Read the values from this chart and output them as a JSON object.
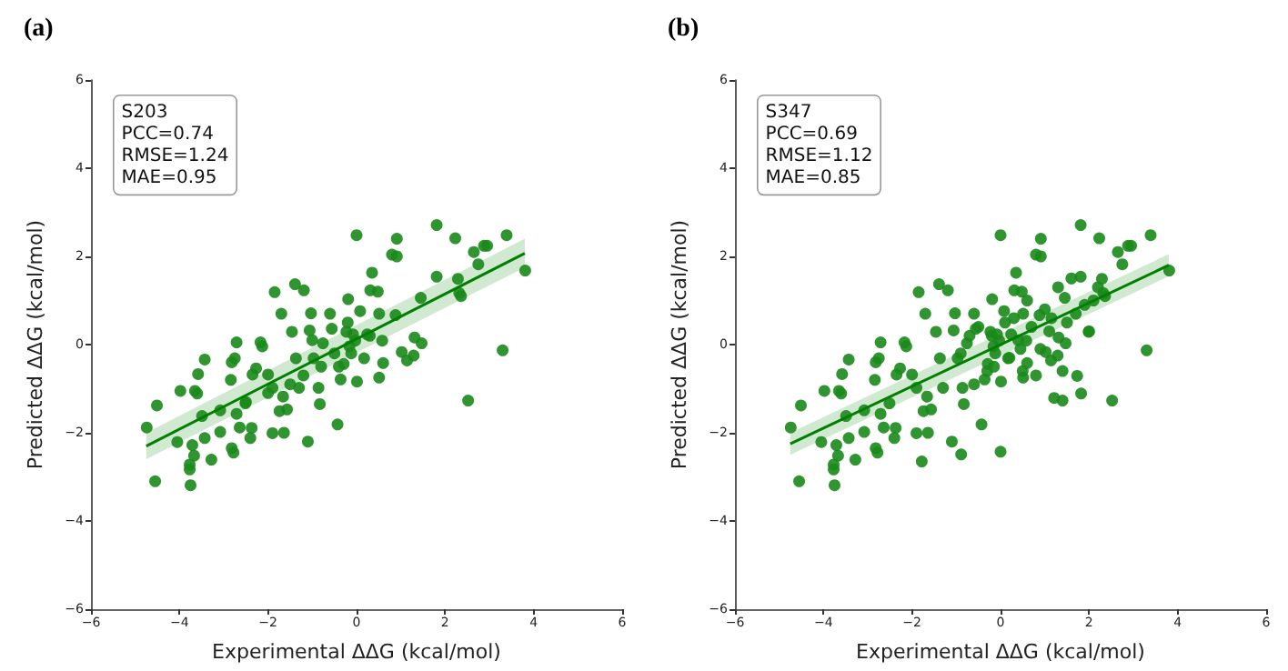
{
  "chart_data": [
    {
      "type": "scatter",
      "title": "(a)",
      "xlabel": "Experimental ΔΔG (kcal/mol)",
      "ylabel": "Predicted ΔΔG (kcal/mol)",
      "xlim": [
        -6,
        6
      ],
      "ylim": [
        -6,
        6
      ],
      "xticks": [
        -6,
        -4,
        -2,
        0,
        2,
        4,
        6
      ],
      "yticks": [
        -6,
        -4,
        -2,
        0,
        2,
        4,
        6
      ],
      "grid": false,
      "annotations": [
        "S203",
        "PCC=0.74",
        "RMSE=1.24",
        "MAE=0.95"
      ],
      "series": [
        {
          "marker": "circle",
          "color": "#1a8a1a",
          "x": [
            -4.74,
            -4.55,
            -4.51,
            -3.98,
            -4.05,
            -3.77,
            -3.75,
            -3.77,
            -3.71,
            -3.67,
            -3.65,
            -3.6,
            -3.58,
            -3.43,
            -3.49,
            -3.43,
            -3.28,
            -3.08,
            -3.08,
            -2.84,
            -2.82,
            -2.71,
            -2.75,
            -2.71,
            -2.64,
            -2.82,
            -2.78,
            -2.51,
            -2.37,
            -2.4,
            -2.35,
            -2.27,
            -2.17,
            -2.13,
            -2.0,
            -1.9,
            -1.9,
            -1.85,
            -1.7,
            -1.66,
            -1.64,
            -1.57,
            -1.74,
            -1.39,
            -1.19,
            -1.46,
            -1.37,
            -1.1,
            -1.3,
            -1.03,
            -1.06,
            -0.97,
            -0.86,
            -0.83,
            -0.76,
            -0.6,
            -0.56,
            -0.43,
            -0.36,
            -0.29,
            -0.23,
            -0.19,
            -0.16,
            -0.12,
            -0.08,
            -0.03,
            0.0,
            0.01,
            0.08,
            0.17,
            0.24,
            0.35,
            0.31,
            0.48,
            0.51,
            0.51,
            0.58,
            0.6,
            0.91,
            0.8,
            0.91,
            0.88,
            1.02,
            1.14,
            1.31,
            1.29,
            1.45,
            1.47,
            1.81,
            1.81,
            2.23,
            2.29,
            2.32,
            2.36,
            2.52,
            2.65,
            2.75,
            2.88,
            2.95,
            3.3,
            3.39,
            3.81,
            -0.5,
            -0.8,
            -1.2,
            -0.2,
            0.3,
            -1.5,
            -2.0,
            -2.5,
            -1.0,
            -0.4
          ],
          "values": [
            -1.88,
            -3.1,
            -1.38,
            -1.05,
            -2.21,
            -2.83,
            -3.19,
            -2.72,
            -2.28,
            -2.52,
            -1.05,
            -1.11,
            -0.67,
            -0.34,
            -1.62,
            -2.12,
            -2.61,
            -1.49,
            -1.98,
            -0.8,
            -0.4,
            0.05,
            -0.31,
            -1.57,
            -1.88,
            -2.35,
            -2.45,
            -1.33,
            -1.89,
            -2.12,
            -0.68,
            -0.54,
            0.05,
            -0.04,
            -0.68,
            -0.98,
            -2.01,
            1.19,
            0.7,
            -1.18,
            -2.0,
            -1.47,
            -1.51,
            1.37,
            1.23,
            0.29,
            -0.31,
            -2.2,
            -0.98,
            0.71,
            0.32,
            -0.31,
            -0.98,
            -1.35,
            0.03,
            0.7,
            0.36,
            -1.81,
            -0.79,
            -0.44,
            0.29,
            1.03,
            -0.04,
            -0.2,
            0.23,
            0.09,
            2.48,
            -0.84,
            0.76,
            -0.31,
            0.23,
            1.63,
            1.23,
            1.2,
            0.7,
            -0.75,
            0.09,
            -0.42,
            2.4,
            2.04,
            2.0,
            0.67,
            -0.17,
            -0.36,
            0.16,
            -0.25,
            1.06,
            0.03,
            2.71,
            1.54,
            2.41,
            1.49,
            1.17,
            1.1,
            -1.27,
            2.1,
            1.82,
            2.24,
            2.24,
            -0.13,
            2.48,
            1.68,
            -0.2,
            -0.5,
            -0.7,
            0.5,
            0.2,
            -0.9,
            -1.1,
            -1.3,
            0.1,
            -0.5
          ]
        },
        {
          "type": "line",
          "color": "#007f00",
          "x": [
            -4.75,
            3.8
          ],
          "values": [
            -2.3,
            2.07
          ],
          "lower": [
            -2.6,
            1.75
          ],
          "upper": [
            -2.0,
            2.4
          ]
        }
      ]
    },
    {
      "type": "scatter",
      "title": "(b)",
      "xlabel": "Experimental ΔΔG (kcal/mol)",
      "ylabel": "Predicted ΔΔG (kcal/mol)",
      "xlim": [
        -6,
        6
      ],
      "ylim": [
        -6,
        6
      ],
      "xticks": [
        -6,
        -4,
        -2,
        0,
        2,
        4,
        6
      ],
      "yticks": [
        -6,
        -4,
        -2,
        0,
        2,
        4,
        6
      ],
      "grid": false,
      "annotations": [
        "S347",
        "PCC=0.69",
        "RMSE=1.12",
        "MAE=0.85"
      ],
      "series": [
        {
          "marker": "circle",
          "color": "#1a8a1a",
          "x": [
            -4.74,
            -4.55,
            -4.51,
            -3.98,
            -4.05,
            -3.77,
            -3.75,
            -3.77,
            -3.71,
            -3.67,
            -3.65,
            -3.6,
            -3.58,
            -3.43,
            -3.49,
            -3.43,
            -3.28,
            -3.08,
            -3.08,
            -2.84,
            -2.82,
            -2.71,
            -2.75,
            -2.71,
            -2.64,
            -2.82,
            -2.78,
            -2.51,
            -2.37,
            -2.4,
            -2.35,
            -2.27,
            -2.17,
            -2.13,
            -2.0,
            -1.9,
            -1.9,
            -1.85,
            -1.7,
            -1.66,
            -1.64,
            -1.57,
            -1.74,
            -1.39,
            -1.19,
            -1.46,
            -1.37,
            -1.1,
            -1.3,
            -1.03,
            -1.06,
            -0.97,
            -0.86,
            -0.83,
            -0.76,
            -0.6,
            -0.56,
            -0.43,
            -0.36,
            -0.29,
            -0.23,
            -0.19,
            -0.16,
            -0.12,
            -0.08,
            -0.03,
            0.0,
            0.01,
            0.08,
            0.17,
            0.24,
            0.35,
            0.31,
            0.48,
            0.51,
            0.51,
            0.58,
            0.6,
            0.91,
            0.8,
            0.91,
            0.88,
            1.02,
            1.14,
            1.31,
            1.29,
            1.45,
            1.47,
            1.81,
            1.81,
            2.23,
            2.29,
            2.32,
            2.36,
            2.52,
            2.65,
            2.75,
            2.88,
            2.95,
            3.3,
            3.39,
            3.81,
            -1.78,
            -0.89,
            0.0,
            1.21,
            1.4,
            1.73,
            1.82,
            2.0,
            1.5,
            1.0,
            0.5,
            1.6,
            1.3,
            0.7,
            0.2,
            0.4,
            -0.3,
            0.9,
            1.1,
            1.9,
            2.1,
            1.7,
            0.6,
            -0.7,
            1.99,
            -0.6,
            0.3,
            1.4,
            0.8,
            2.2,
            -0.5,
            -0.2,
            0.1,
            0.45,
            1.15,
            -0.9,
            -0.15
          ],
          "values": [
            -1.88,
            -3.1,
            -1.38,
            -1.05,
            -2.21,
            -2.83,
            -3.19,
            -2.72,
            -2.28,
            -2.52,
            -1.05,
            -1.11,
            -0.67,
            -0.34,
            -1.62,
            -2.12,
            -2.61,
            -1.49,
            -1.98,
            -0.8,
            -0.4,
            0.05,
            -0.31,
            -1.57,
            -1.88,
            -2.35,
            -2.45,
            -1.33,
            -1.89,
            -2.12,
            -0.68,
            -0.54,
            0.05,
            -0.04,
            -0.68,
            -0.98,
            -2.01,
            1.19,
            0.7,
            -1.18,
            -2.0,
            -1.47,
            -1.51,
            1.37,
            1.23,
            0.29,
            -0.31,
            -2.2,
            -0.98,
            0.71,
            0.32,
            -0.31,
            -0.98,
            -1.35,
            0.03,
            0.7,
            0.36,
            -1.81,
            -0.79,
            -0.44,
            0.29,
            1.03,
            -0.04,
            -0.2,
            0.23,
            0.09,
            2.48,
            -0.84,
            0.76,
            -0.31,
            0.23,
            1.63,
            1.23,
            1.2,
            0.7,
            -0.75,
            0.09,
            -0.42,
            2.4,
            2.04,
            2.0,
            0.67,
            -0.17,
            -0.36,
            0.16,
            -0.25,
            1.06,
            0.03,
            2.71,
            1.54,
            2.41,
            1.49,
            1.17,
            1.1,
            -1.27,
            2.1,
            1.82,
            2.24,
            2.24,
            -0.13,
            2.48,
            1.68,
            -2.65,
            -2.49,
            -2.43,
            -1.21,
            -1.27,
            -0.71,
            -1.11,
            0.3,
            0.5,
            0.8,
            -0.6,
            1.5,
            1.3,
            0.4,
            -0.3,
            0.1,
            -0.6,
            -0.1,
            0.3,
            0.9,
            1.0,
            0.7,
            1.0,
            0.2,
            0.29,
            -0.9,
            0.6,
            -0.6,
            -0.7,
            1.3,
            0.4,
            0.2,
            0.5,
            -0.1,
            0.6,
            -0.2,
            -0.5
          ]
        },
        {
          "type": "line",
          "color": "#007f00",
          "x": [
            -4.75,
            3.8
          ],
          "values": [
            -2.25,
            1.8
          ],
          "lower": [
            -2.5,
            1.55
          ],
          "upper": [
            -2.0,
            2.05
          ]
        }
      ]
    }
  ]
}
